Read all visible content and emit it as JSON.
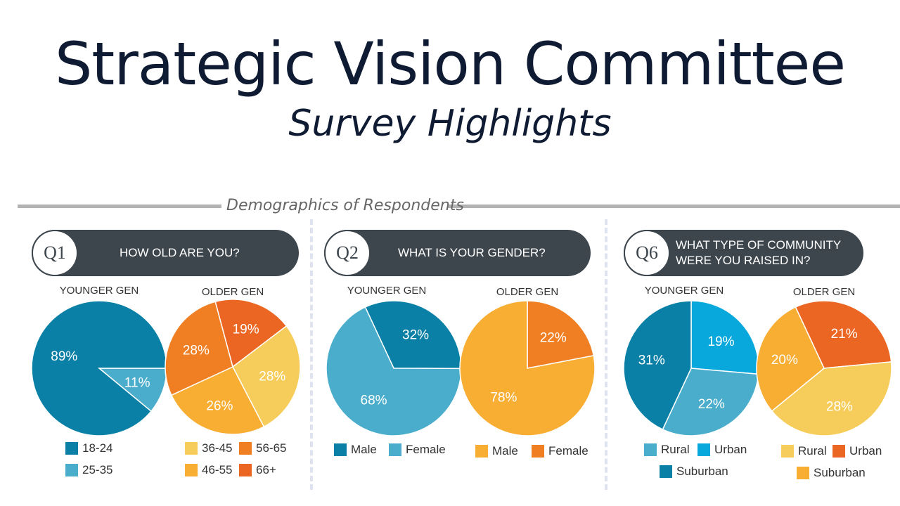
{
  "title": "Strategic Vision Committee",
  "subtitle": "Survey Highlights",
  "section": "Demographics of Respondents",
  "colors": {
    "dark_teal": "#0a80a6",
    "light_teal": "#4badcc",
    "bright_blue": "#08a8dc",
    "yellow": "#f6cd5b",
    "gold": "#f8ad33",
    "orange": "#f07f23",
    "red_orange": "#eb6622",
    "pill": "#3d464d"
  },
  "chart_data": [
    {
      "type": "pie",
      "question": "Q1",
      "title": "HOW OLD ARE YOU?",
      "pies": [
        {
          "title": "YOUNGER GEN",
          "slices": [
            {
              "label": "25-35",
              "value": 11,
              "color": "#4badcc"
            },
            {
              "label": "18-24",
              "value": 89,
              "color": "#0a80a6"
            }
          ]
        },
        {
          "title": "OLDER GEN",
          "slices": [
            {
              "label": "66+",
              "value": 19,
              "color": "#eb6622"
            },
            {
              "label": "36-45",
              "value": 28,
              "color": "#f6cd5b"
            },
            {
              "label": "46-55",
              "value": 26,
              "color": "#f8ad33"
            },
            {
              "label": "56-65",
              "value": 28,
              "color": "#f07f23"
            }
          ]
        }
      ]
    },
    {
      "type": "pie",
      "question": "Q2",
      "title": "WHAT IS YOUR GENDER?",
      "pies": [
        {
          "title": "YOUNGER GEN",
          "slices": [
            {
              "label": "Male",
              "value": 32,
              "color": "#0a80a6"
            },
            {
              "label": "Female",
              "value": 68,
              "color": "#4badcc"
            }
          ]
        },
        {
          "title": "OLDER GEN",
          "slices": [
            {
              "label": "Female",
              "value": 22,
              "color": "#f07f23"
            },
            {
              "label": "Male",
              "value": 78,
              "color": "#f8ad33"
            }
          ]
        }
      ]
    },
    {
      "type": "pie",
      "question": "Q6",
      "title": "WHAT TYPE OF COMMUNITY WERE YOU RAISED IN?",
      "pies": [
        {
          "title": "YOUNGER GEN",
          "slices": [
            {
              "label": "Urban",
              "value": 19,
              "color": "#08a8dc"
            },
            {
              "label": "Rural",
              "value": 22,
              "color": "#4badcc"
            },
            {
              "label": "Suburban",
              "value": 31,
              "color": "#0a80a6"
            }
          ]
        },
        {
          "title": "OLDER GEN",
          "slices": [
            {
              "label": "Urban",
              "value": 21,
              "color": "#eb6622"
            },
            {
              "label": "Rural",
              "value": 28,
              "color": "#f6cd5b"
            },
            {
              "label": "Suburban",
              "value": 20,
              "color": "#f8ad33"
            }
          ]
        }
      ]
    }
  ],
  "legends": [
    [
      [
        {
          "label": "18-24",
          "color": "#0a80a6"
        }
      ],
      [
        {
          "label": "25-35",
          "color": "#4badcc"
        }
      ]
    ],
    [
      [
        {
          "label": "36-45",
          "color": "#f6cd5b"
        },
        {
          "label": "56-65",
          "color": "#f07f23"
        }
      ],
      [
        {
          "label": "46-55",
          "color": "#f8ad33"
        },
        {
          "label": "66+",
          "color": "#eb6622"
        }
      ]
    ],
    [
      [
        {
          "label": "Male",
          "color": "#0a80a6"
        },
        {
          "label": "Female",
          "color": "#4badcc"
        }
      ]
    ],
    [
      [
        {
          "label": "Male",
          "color": "#f8ad33"
        },
        {
          "label": "Female",
          "color": "#f07f23"
        }
      ]
    ],
    [
      [
        {
          "label": "Rural",
          "color": "#4badcc"
        },
        {
          "label": "Urban",
          "color": "#08a8dc"
        }
      ],
      [
        {
          "label": "Suburban",
          "color": "#0a80a6"
        }
      ]
    ],
    [
      [
        {
          "label": "Rural",
          "color": "#f6cd5b"
        },
        {
          "label": "Urban",
          "color": "#eb6622"
        }
      ],
      [
        {
          "label": "Suburban",
          "color": "#f8ad33"
        }
      ]
    ]
  ]
}
